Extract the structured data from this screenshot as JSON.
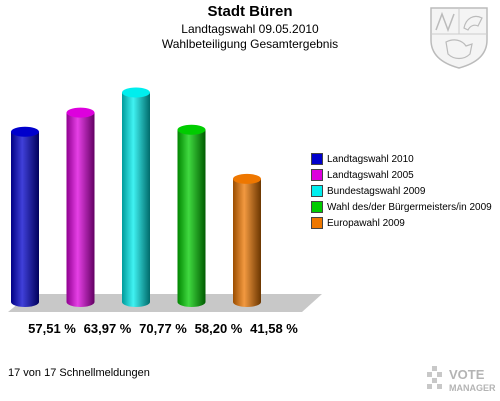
{
  "header": {
    "title": "Stadt Büren",
    "subtitle1": "Landtagswahl 09.05.2010",
    "subtitle2": "Wahlbeteiligung Gesamtergebnis"
  },
  "footer": {
    "text": "17 von 17 Schnellmeldungen"
  },
  "brand": {
    "line1": "VOTE",
    "line2": "MANAGER"
  },
  "chart_data": {
    "type": "bar",
    "title": "Wahlbeteiligung Gesamtergebnis",
    "categories": [
      "Landtagswahl 2010",
      "Landtagswahl 2005",
      "Bundestagswahl 2009",
      "Wahl des/der Bürgermeisters/in 2009",
      "Europawahl 2009"
    ],
    "values": [
      57.51,
      63.97,
      70.77,
      58.2,
      41.58
    ],
    "value_labels": [
      "57,51 %",
      "63,97 %",
      "70,77 %",
      "58,20 %",
      "41,58 %"
    ],
    "colors": [
      "#0000cc",
      "#dd00dd",
      "#00eeee",
      "#00cc00",
      "#ee7700"
    ],
    "legend_position": "right",
    "grid": false
  }
}
